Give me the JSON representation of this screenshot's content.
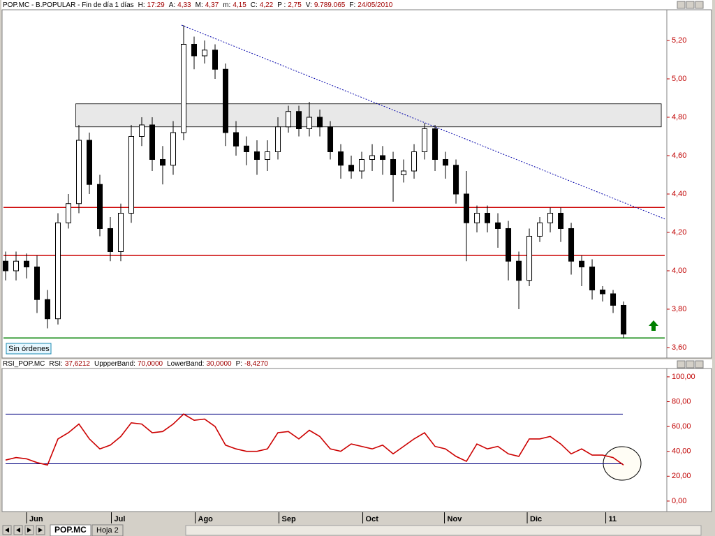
{
  "header": {
    "symbol": "POP.MC - B.POPULAR - Fin de día 1 días",
    "fields": [
      {
        "label": "H:",
        "value": "17:29"
      },
      {
        "label": "A:",
        "value": "4,33"
      },
      {
        "label": "M:",
        "value": "4,37"
      },
      {
        "label": "m:",
        "value": "4,15"
      },
      {
        "label": "C:",
        "value": "4,22"
      },
      {
        "label": "P :",
        "value": "2,75"
      },
      {
        "label": "V:",
        "value": "9.789.065"
      },
      {
        "label": "F:",
        "value": "24/05/2010"
      }
    ]
  },
  "chart_data": [
    {
      "type": "candlestick",
      "open": [
        4.05,
        4.0,
        4.05,
        4.02,
        3.85,
        3.75,
        4.25,
        4.35,
        4.68,
        4.45,
        4.22,
        4.1,
        4.3,
        4.7,
        4.76,
        4.58,
        4.55,
        4.72,
        5.18,
        5.12,
        5.15,
        5.05,
        4.72,
        4.65,
        4.62,
        4.58,
        4.62,
        4.75,
        4.83,
        4.74,
        4.8,
        4.75,
        4.62,
        4.55,
        4.52,
        4.58,
        4.6,
        4.58,
        4.5,
        4.52,
        4.62,
        4.74,
        4.58,
        4.55,
        4.4,
        4.25,
        4.3,
        4.25,
        4.22,
        4.05,
        3.95,
        4.18,
        4.25,
        4.3,
        4.22,
        4.05,
        4.02,
        3.9,
        3.88,
        3.82
      ],
      "high": [
        4.1,
        4.1,
        4.09,
        4.08,
        3.9,
        4.3,
        4.4,
        4.76,
        4.72,
        4.5,
        4.28,
        4.35,
        4.76,
        4.8,
        4.8,
        4.65,
        4.78,
        5.28,
        5.22,
        5.2,
        5.18,
        5.08,
        4.78,
        4.7,
        4.68,
        4.68,
        4.8,
        4.86,
        4.86,
        4.88,
        4.84,
        4.78,
        4.66,
        4.6,
        4.62,
        4.66,
        4.65,
        4.62,
        4.58,
        4.66,
        4.77,
        4.76,
        4.62,
        4.58,
        4.52,
        4.34,
        4.34,
        4.3,
        4.26,
        4.1,
        4.22,
        4.28,
        4.33,
        4.33,
        4.25,
        4.08,
        4.06,
        3.92,
        3.9,
        3.84
      ],
      "low": [
        3.95,
        3.95,
        3.96,
        3.78,
        3.7,
        3.72,
        4.22,
        4.3,
        4.4,
        4.18,
        4.05,
        4.05,
        4.25,
        4.65,
        4.52,
        4.45,
        4.5,
        4.68,
        5.05,
        5.08,
        5.0,
        4.65,
        4.6,
        4.55,
        4.5,
        4.52,
        4.58,
        4.72,
        4.7,
        4.7,
        4.7,
        4.58,
        4.48,
        4.48,
        4.48,
        4.52,
        4.5,
        4.36,
        4.46,
        4.48,
        4.58,
        4.52,
        4.48,
        4.35,
        4.05,
        4.2,
        4.2,
        4.12,
        3.95,
        3.8,
        3.92,
        4.15,
        4.2,
        4.15,
        3.98,
        3.92,
        3.85,
        3.84,
        3.78,
        3.65
      ],
      "close": [
        4.0,
        4.05,
        4.02,
        3.85,
        3.75,
        4.25,
        4.35,
        4.68,
        4.45,
        4.22,
        4.1,
        4.3,
        4.7,
        4.76,
        4.58,
        4.55,
        4.72,
        5.18,
        5.12,
        5.15,
        5.05,
        4.72,
        4.65,
        4.62,
        4.58,
        4.62,
        4.75,
        4.83,
        4.74,
        4.8,
        4.75,
        4.62,
        4.55,
        4.52,
        4.58,
        4.6,
        4.58,
        4.5,
        4.52,
        4.62,
        4.74,
        4.58,
        4.55,
        4.4,
        4.25,
        4.3,
        4.25,
        4.22,
        4.05,
        3.95,
        4.18,
        4.25,
        4.3,
        4.22,
        4.05,
        4.02,
        3.9,
        3.88,
        3.82,
        3.67
      ],
      "up_color": "#ffffff",
      "down_color": "#000000",
      "xlim": [
        -0.2,
        63.13
      ],
      "ylim": [
        3.549,
        5.36
      ],
      "yticks": [
        {
          "value": 5.2,
          "label": "5,20"
        },
        {
          "value": 5.0,
          "label": "5,00"
        },
        {
          "value": 4.8,
          "label": "4,80"
        },
        {
          "value": 4.6,
          "label": "4,60"
        },
        {
          "value": 4.4,
          "label": "4,40"
        },
        {
          "value": 4.2,
          "label": "4,20"
        },
        {
          "value": 4.0,
          "label": "4,00"
        },
        {
          "value": 3.8,
          "label": "3,80"
        },
        {
          "value": 3.6,
          "label": "3,60"
        }
      ],
      "hlines": [
        {
          "value": 4.33,
          "color": "#cc0000"
        },
        {
          "value": 4.08,
          "color": "#cc0000"
        },
        {
          "value": 3.65,
          "color": "#008000"
        }
      ],
      "zone": {
        "x0": 6.7,
        "x1": 62.6,
        "low": 4.75,
        "high": 4.87
      },
      "trendline": {
        "x0": 16.8,
        "y0": 5.28,
        "x1": 62.93,
        "y1": 4.27,
        "color": "#0000aa"
      },
      "label": "Sin órdenes"
    },
    {
      "type": "line",
      "title": "RSI_POP.MC",
      "fields": [
        {
          "label": "RSI:",
          "value": "37,6212"
        },
        {
          "label": "UppperBand:",
          "value": "70,0000"
        },
        {
          "label": "LowerBand:",
          "value": "30,0000"
        },
        {
          "label": "P:",
          "value": "-8,4270"
        }
      ],
      "values": [
        33,
        35,
        34,
        31,
        29,
        50,
        55,
        62,
        50,
        42,
        45,
        52,
        63,
        62,
        55,
        56,
        62,
        70,
        65,
        66,
        60,
        45,
        42,
        40,
        40,
        42,
        55,
        56,
        50,
        57,
        52,
        42,
        40,
        46,
        44,
        42,
        45,
        38,
        44,
        50,
        55,
        44,
        42,
        36,
        32,
        46,
        42,
        44,
        38,
        36,
        50,
        50,
        52,
        46,
        38,
        42,
        37,
        37,
        35,
        29
      ],
      "color": "#cc0000",
      "bands": [
        70,
        30
      ],
      "band_color": "#000080",
      "xlim": [
        -0.2,
        63.13
      ],
      "ylim": [
        -7.9,
        106.7
      ],
      "yticks": [
        {
          "value": 100,
          "label": "100,00"
        },
        {
          "value": 80,
          "label": "80,00"
        },
        {
          "value": 60,
          "label": "60,00"
        },
        {
          "value": 40,
          "label": "40,00"
        },
        {
          "value": 20,
          "label": "20,00"
        },
        {
          "value": 0,
          "label": "0,00"
        }
      ],
      "xticks": [
        {
          "value": 2,
          "label": "Jun"
        },
        {
          "value": 10.1,
          "label": "Jul"
        },
        {
          "value": 18.1,
          "label": "Ago"
        },
        {
          "value": 26.1,
          "label": "Sep"
        },
        {
          "value": 34.1,
          "label": "Oct"
        },
        {
          "value": 41.9,
          "label": "Nov"
        },
        {
          "value": 49.8,
          "label": "Dic"
        },
        {
          "value": 57.3,
          "label": "11"
        }
      ]
    }
  ],
  "tabs": [
    "POP.MC",
    "Hoja 2"
  ]
}
